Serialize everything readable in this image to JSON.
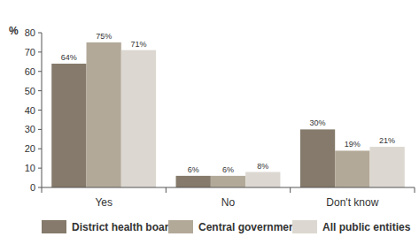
{
  "chart_data": {
    "type": "bar",
    "y_label": "%",
    "categories": [
      "Yes",
      "No",
      "Don't know"
    ],
    "series": [
      {
        "name": "District health boards",
        "color": "#857a6b",
        "values": [
          64,
          6,
          30
        ],
        "value_labels": [
          "64%",
          "6%",
          "30%"
        ]
      },
      {
        "name": "Central government",
        "color": "#b3a999",
        "values": [
          75,
          6,
          19
        ],
        "value_labels": [
          "75%",
          "6%",
          "19%"
        ]
      },
      {
        "name": "All public entities",
        "color": "#dcd8d1",
        "values": [
          71,
          8,
          21
        ],
        "value_labels": [
          "71%",
          "8%",
          "21%"
        ]
      }
    ],
    "ylim": [
      0,
      80
    ],
    "yticks": [
      0,
      10,
      20,
      30,
      40,
      50,
      60,
      70,
      80
    ],
    "grid": false,
    "legend": "bottom",
    "data_labels": true
  }
}
